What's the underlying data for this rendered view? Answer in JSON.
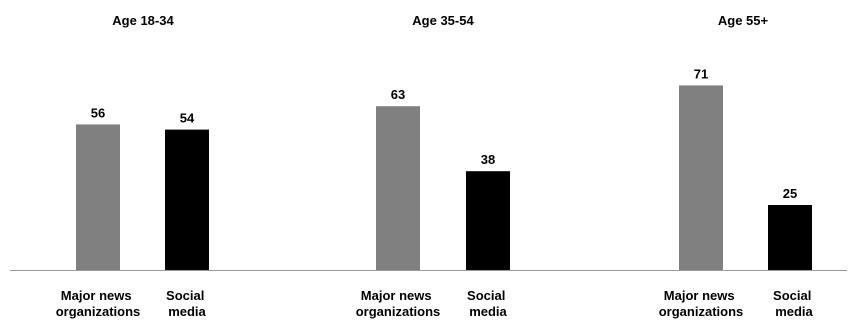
{
  "colors": {
    "Major news organizations": "#808080",
    "Social media": "#000000"
  },
  "chart_data": [
    {
      "type": "bar",
      "title": "Age 18-34",
      "categories": [
        "Major news organizations",
        "Social media"
      ],
      "category_lines": [
        [
          "Major news",
          "organizations"
        ],
        [
          "Social",
          "media"
        ]
      ],
      "values": [
        56,
        54
      ],
      "ylim": [
        0,
        80
      ],
      "grid": false
    },
    {
      "type": "bar",
      "title": "Age 35-54",
      "categories": [
        "Major news organizations",
        "Social media"
      ],
      "category_lines": [
        [
          "Major news",
          "organizations"
        ],
        [
          "Social",
          "media"
        ]
      ],
      "values": [
        63,
        38
      ],
      "ylim": [
        0,
        80
      ],
      "grid": false
    },
    {
      "type": "bar",
      "title": "Age 55+",
      "categories": [
        "Major news organizations",
        "Social media"
      ],
      "category_lines": [
        [
          "Major news",
          "organizations"
        ],
        [
          "Social",
          "media"
        ]
      ],
      "values": [
        71,
        25
      ],
      "ylim": [
        0,
        80
      ],
      "grid": false
    }
  ]
}
